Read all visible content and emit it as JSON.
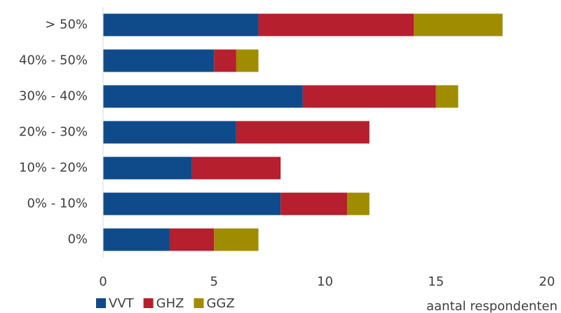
{
  "chart_data": {
    "type": "stacked_barh",
    "x_label": "aantal respondenten",
    "categories": [
      "> 50%",
      "40% - 50%",
      "30% - 40%",
      "20% - 30%",
      "10% - 20%",
      "0% - 10%",
      "0%"
    ],
    "series": [
      {
        "name": "VVT",
        "color": "#0f4a8a",
        "values": [
          7,
          5,
          9,
          6,
          4,
          8,
          3
        ]
      },
      {
        "name": "GHZ",
        "color": "#b51f2e",
        "values": [
          7,
          1,
          6,
          6,
          4,
          3,
          2
        ]
      },
      {
        "name": "GGZ",
        "color": "#a08c00",
        "values": [
          4,
          1,
          1,
          0,
          0,
          1,
          2
        ]
      }
    ],
    "xlim": [
      0,
      20
    ],
    "xticks": [
      0,
      5,
      10,
      15,
      20
    ],
    "grid": false,
    "legend": "bottom-left"
  }
}
